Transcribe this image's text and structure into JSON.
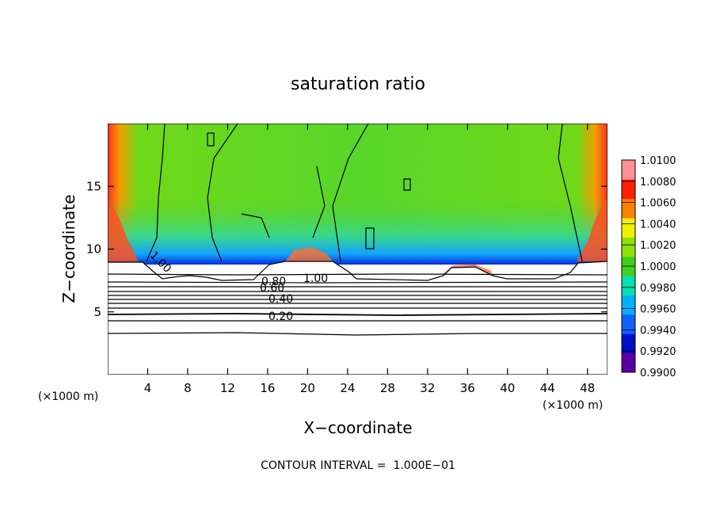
{
  "chart_data": {
    "type": "heatmap",
    "title": "saturation ratio",
    "xlabel": "X−coordinate",
    "ylabel": "Z−coordinate",
    "x_unit_note_left": "(×1000 m)",
    "x_unit_note_right": "(×1000 m)",
    "xlim": [
      0,
      50
    ],
    "ylim": [
      0,
      20
    ],
    "x_ticks": [
      4,
      8,
      12,
      16,
      20,
      24,
      28,
      32,
      36,
      40,
      44,
      48
    ],
    "x_tick_labels": [
      "4",
      "8",
      "12",
      "16",
      "20",
      "24",
      "28",
      "32",
      "36",
      "40",
      "44",
      "48"
    ],
    "y_ticks": [
      5,
      10,
      15
    ],
    "y_tick_labels": [
      "5",
      "10",
      "15"
    ],
    "colorbar": {
      "min": 0.99,
      "max": 1.01,
      "levels": [
        0.99,
        0.992,
        0.994,
        0.996,
        0.998,
        1.0,
        1.002,
        1.004,
        1.006,
        1.008,
        1.01
      ],
      "labels": [
        "0.9900",
        "0.9920",
        "0.9940",
        "0.9960",
        "0.9980",
        "1.0000",
        "1.0020",
        "1.0040",
        "1.0060",
        "1.0080",
        "1.0100"
      ],
      "colors": [
        "#5a00a0",
        "#0010c8",
        "#1060ff",
        "#00b0ff",
        "#00e0b0",
        "#40d020",
        "#90e000",
        "#f0f000",
        "#ff8000",
        "#ff2000",
        "#ff9090"
      ]
    },
    "contour_labels": [
      "0.20",
      "0.40",
      "0.60",
      "0.80",
      "1.00",
      "1.00"
    ],
    "annotation": "CONTOUR INTERVAL =  1.000E−01"
  },
  "colors": {
    "background": "#ffffff",
    "unsaturated_region": "#ffffff",
    "contour_line": "#000000"
  }
}
